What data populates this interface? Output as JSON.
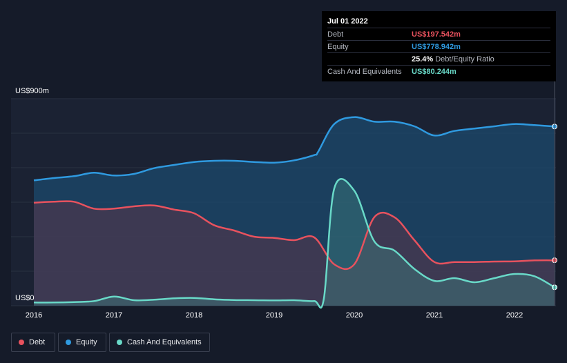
{
  "tooltip": {
    "date": "Jul 01 2022",
    "rows": [
      {
        "label": "Debt",
        "value": "US$197.542m",
        "color": "#e8525e"
      },
      {
        "label": "Equity",
        "value": "US$778.942m",
        "color": "#2f9ae0"
      },
      {
        "label": "",
        "value": "25.4%",
        "suffix": "Debt/Equity Ratio",
        "color": "#ffffff"
      },
      {
        "label": "Cash And Equivalents",
        "value": "US$80.244m",
        "color": "#69d9c8"
      }
    ]
  },
  "legend": [
    {
      "label": "Debt",
      "color": "#e8525e"
    },
    {
      "label": "Equity",
      "color": "#2f9ae0"
    },
    {
      "label": "Cash And Equivalents",
      "color": "#69d9c8"
    }
  ],
  "chart_data": {
    "type": "area",
    "title": "",
    "xlabel": "",
    "ylabel": "",
    "y_top_label": "US$900m",
    "y_bottom_label": "US$0",
    "ylim": [
      0,
      900
    ],
    "xlim": [
      2016.0,
      2022.5
    ],
    "x_ticks": [
      "2016",
      "2017",
      "2018",
      "2019",
      "2020",
      "2021",
      "2022"
    ],
    "series": [
      {
        "name": "Equity",
        "color": "#2f9ae0",
        "points": [
          [
            2016.0,
            545
          ],
          [
            2016.25,
            555
          ],
          [
            2016.5,
            563
          ],
          [
            2016.75,
            578
          ],
          [
            2017.0,
            566
          ],
          [
            2017.25,
            573
          ],
          [
            2017.5,
            598
          ],
          [
            2017.75,
            612
          ],
          [
            2018.0,
            625
          ],
          [
            2018.25,
            630
          ],
          [
            2018.5,
            630
          ],
          [
            2018.75,
            625
          ],
          [
            2019.0,
            622
          ],
          [
            2019.25,
            632
          ],
          [
            2019.5,
            655
          ],
          [
            2019.55,
            670
          ],
          [
            2019.75,
            790
          ],
          [
            2020.0,
            820
          ],
          [
            2020.25,
            800
          ],
          [
            2020.5,
            800
          ],
          [
            2020.75,
            780
          ],
          [
            2021.0,
            740
          ],
          [
            2021.25,
            760
          ],
          [
            2021.5,
            770
          ],
          [
            2021.75,
            780
          ],
          [
            2022.0,
            790
          ],
          [
            2022.25,
            785
          ],
          [
            2022.5,
            779
          ]
        ]
      },
      {
        "name": "Debt",
        "color": "#e8525e",
        "points": [
          [
            2016.0,
            448
          ],
          [
            2016.25,
            452
          ],
          [
            2016.5,
            452
          ],
          [
            2016.75,
            422
          ],
          [
            2017.0,
            422
          ],
          [
            2017.25,
            432
          ],
          [
            2017.5,
            436
          ],
          [
            2017.75,
            418
          ],
          [
            2018.0,
            402
          ],
          [
            2018.25,
            350
          ],
          [
            2018.5,
            327
          ],
          [
            2018.75,
            300
          ],
          [
            2019.0,
            295
          ],
          [
            2019.25,
            285
          ],
          [
            2019.5,
            297
          ],
          [
            2019.75,
            180
          ],
          [
            2020.0,
            180
          ],
          [
            2020.25,
            385
          ],
          [
            2020.5,
            385
          ],
          [
            2020.75,
            285
          ],
          [
            2021.0,
            190
          ],
          [
            2021.25,
            190
          ],
          [
            2021.5,
            190
          ],
          [
            2021.75,
            192
          ],
          [
            2022.0,
            193
          ],
          [
            2022.25,
            197
          ],
          [
            2022.5,
            197.5
          ]
        ]
      },
      {
        "name": "Cash And Equivalents",
        "color": "#69d9c8",
        "points": [
          [
            2016.0,
            14
          ],
          [
            2016.25,
            14
          ],
          [
            2016.5,
            16
          ],
          [
            2016.75,
            20
          ],
          [
            2017.0,
            40
          ],
          [
            2017.25,
            24
          ],
          [
            2017.5,
            26
          ],
          [
            2017.75,
            32
          ],
          [
            2018.0,
            34
          ],
          [
            2018.25,
            28
          ],
          [
            2018.5,
            25
          ],
          [
            2018.75,
            24
          ],
          [
            2019.0,
            23
          ],
          [
            2019.25,
            24
          ],
          [
            2019.5,
            20
          ],
          [
            2019.62,
            30
          ],
          [
            2019.75,
            510
          ],
          [
            2020.0,
            500
          ],
          [
            2020.25,
            280
          ],
          [
            2020.5,
            240
          ],
          [
            2020.75,
            160
          ],
          [
            2021.0,
            108
          ],
          [
            2021.25,
            120
          ],
          [
            2021.5,
            102
          ],
          [
            2021.75,
            120
          ],
          [
            2022.0,
            138
          ],
          [
            2022.25,
            128
          ],
          [
            2022.5,
            80
          ]
        ]
      }
    ]
  }
}
